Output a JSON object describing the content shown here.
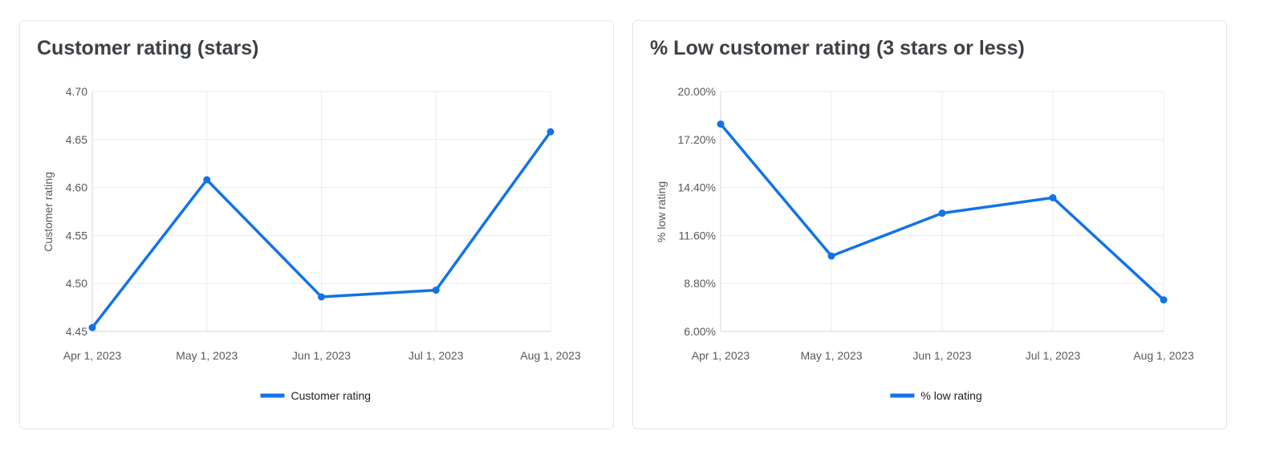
{
  "charts": [
    {
      "title": "Customer rating (stars)",
      "chart_data": {
        "type": "line",
        "x": [
          "Apr 1, 2023",
          "May 1, 2023",
          "Jun 1, 2023",
          "Jul 1, 2023",
          "Aug 1, 2023"
        ],
        "series": [
          {
            "name": "Customer rating",
            "values": [
              4.454,
              4.608,
              4.486,
              4.493,
              4.658
            ],
            "color": "#1273e6"
          }
        ],
        "ylabel": "Customer rating",
        "xlabel": "",
        "ylim": [
          4.45,
          4.7
        ],
        "yticks": [
          "4.45",
          "4.50",
          "4.55",
          "4.60",
          "4.65",
          "4.70"
        ],
        "grid": true,
        "legend": "bottom"
      }
    },
    {
      "title": "% Low customer rating (3 stars or less)",
      "chart_data": {
        "type": "line",
        "x": [
          "Apr 1, 2023",
          "May 1, 2023",
          "Jun 1, 2023",
          "Jul 1, 2023",
          "Aug 1, 2023"
        ],
        "series": [
          {
            "name": "% low rating",
            "values": [
              18.1,
              10.4,
              12.9,
              13.8,
              7.84
            ],
            "color": "#1273e6"
          }
        ],
        "ylabel": "% low rating",
        "xlabel": "",
        "ylim": [
          6.0,
          20.0
        ],
        "yticks": [
          "6.00%",
          "8.80%",
          "11.60%",
          "14.40%",
          "17.20%",
          "20.00%"
        ],
        "grid": true,
        "legend": "bottom"
      }
    }
  ]
}
